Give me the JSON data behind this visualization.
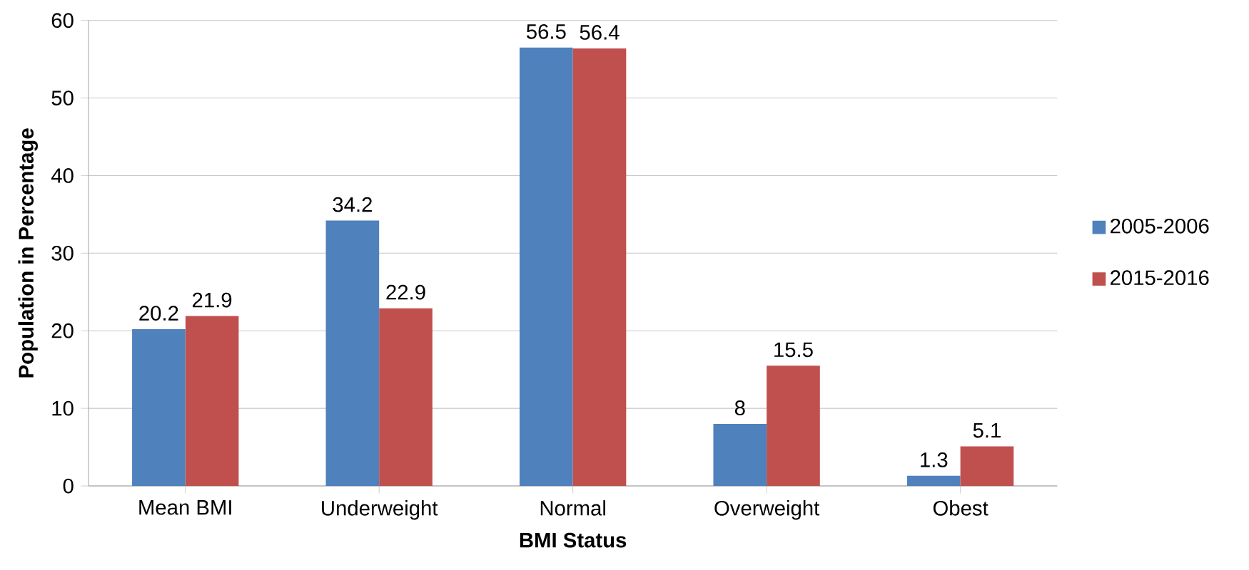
{
  "chart_data": {
    "type": "bar",
    "xlabel": "BMI Status",
    "ylabel": "Population in Percentage",
    "categories": [
      "Mean BMI",
      "Underweight",
      "Normal",
      "Overweight",
      "Obest"
    ],
    "series": [
      {
        "name": "2005-2006",
        "color": "#4f81bd",
        "values": [
          20.2,
          34.2,
          56.5,
          8,
          1.3
        ]
      },
      {
        "name": "2015-2016",
        "color": "#c0504d",
        "values": [
          21.9,
          22.9,
          56.4,
          15.5,
          5.1
        ]
      }
    ],
    "ylim": [
      0,
      60
    ],
    "yticks": [
      0,
      10,
      20,
      30,
      40,
      50,
      60
    ],
    "grid": "y",
    "legend": "right",
    "data_labels": true
  }
}
